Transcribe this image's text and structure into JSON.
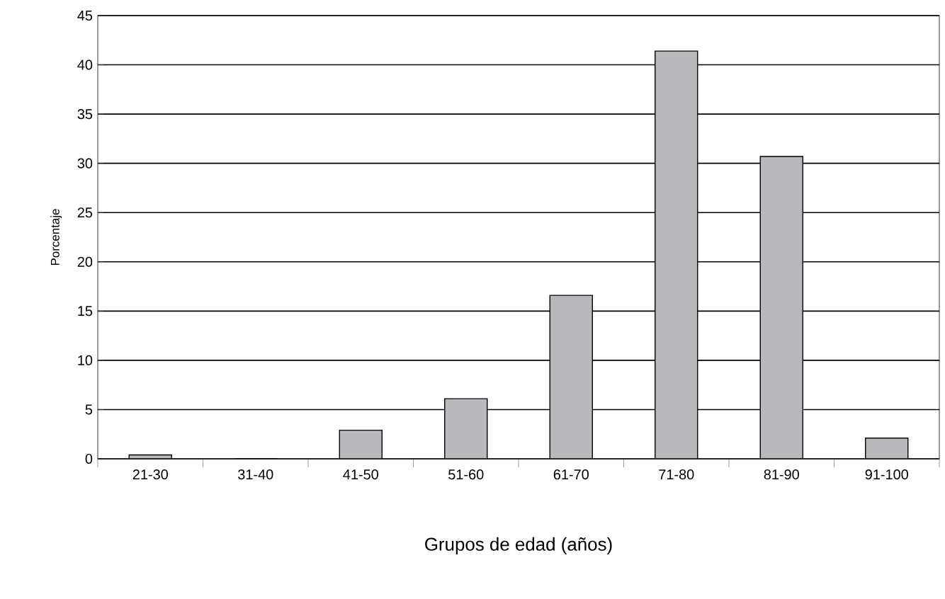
{
  "chart_data": {
    "type": "bar",
    "xlabel": "Grupos de edad (años)",
    "ylabel": "Porcentaje",
    "categories": [
      "21-30",
      "31-40",
      "41-50",
      "51-60",
      "61-70",
      "71-80",
      "81-90",
      "91-100"
    ],
    "values": [
      0.4,
      0,
      2.9,
      6.1,
      16.6,
      41.4,
      30.7,
      2.1
    ],
    "color": "#b8b9bc",
    "ylim": [
      0,
      45
    ],
    "yticks": [
      0,
      5,
      10,
      15,
      20,
      25,
      30,
      35,
      40,
      45
    ],
    "grid": "y"
  }
}
